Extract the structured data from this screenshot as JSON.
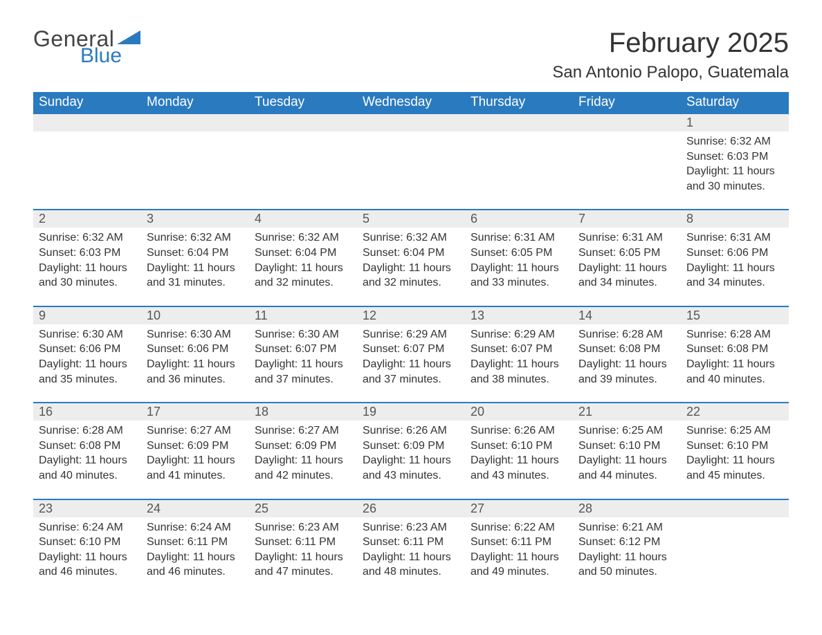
{
  "brand": {
    "word1": "General",
    "word2": "Blue",
    "color": "#2a7ac0"
  },
  "title": "February 2025",
  "location": "San Antonio Palopo, Guatemala",
  "colors": {
    "header_bg": "#2a7ac0",
    "header_text": "#ffffff",
    "row_gray": "#ededed",
    "divider": "#2a7ac0",
    "text": "#333333"
  },
  "day_headers": [
    "Sunday",
    "Monday",
    "Tuesday",
    "Wednesday",
    "Thursday",
    "Friday",
    "Saturday"
  ],
  "weeks": [
    {
      "days": [
        null,
        null,
        null,
        null,
        null,
        null,
        {
          "n": "1",
          "sunrise": "6:32 AM",
          "sunset": "6:03 PM",
          "daylight": "11 hours and 30 minutes."
        }
      ]
    },
    {
      "days": [
        {
          "n": "2",
          "sunrise": "6:32 AM",
          "sunset": "6:03 PM",
          "daylight": "11 hours and 30 minutes."
        },
        {
          "n": "3",
          "sunrise": "6:32 AM",
          "sunset": "6:04 PM",
          "daylight": "11 hours and 31 minutes."
        },
        {
          "n": "4",
          "sunrise": "6:32 AM",
          "sunset": "6:04 PM",
          "daylight": "11 hours and 32 minutes."
        },
        {
          "n": "5",
          "sunrise": "6:32 AM",
          "sunset": "6:04 PM",
          "daylight": "11 hours and 32 minutes."
        },
        {
          "n": "6",
          "sunrise": "6:31 AM",
          "sunset": "6:05 PM",
          "daylight": "11 hours and 33 minutes."
        },
        {
          "n": "7",
          "sunrise": "6:31 AM",
          "sunset": "6:05 PM",
          "daylight": "11 hours and 34 minutes."
        },
        {
          "n": "8",
          "sunrise": "6:31 AM",
          "sunset": "6:06 PM",
          "daylight": "11 hours and 34 minutes."
        }
      ]
    },
    {
      "days": [
        {
          "n": "9",
          "sunrise": "6:30 AM",
          "sunset": "6:06 PM",
          "daylight": "11 hours and 35 minutes."
        },
        {
          "n": "10",
          "sunrise": "6:30 AM",
          "sunset": "6:06 PM",
          "daylight": "11 hours and 36 minutes."
        },
        {
          "n": "11",
          "sunrise": "6:30 AM",
          "sunset": "6:07 PM",
          "daylight": "11 hours and 37 minutes."
        },
        {
          "n": "12",
          "sunrise": "6:29 AM",
          "sunset": "6:07 PM",
          "daylight": "11 hours and 37 minutes."
        },
        {
          "n": "13",
          "sunrise": "6:29 AM",
          "sunset": "6:07 PM",
          "daylight": "11 hours and 38 minutes."
        },
        {
          "n": "14",
          "sunrise": "6:28 AM",
          "sunset": "6:08 PM",
          "daylight": "11 hours and 39 minutes."
        },
        {
          "n": "15",
          "sunrise": "6:28 AM",
          "sunset": "6:08 PM",
          "daylight": "11 hours and 40 minutes."
        }
      ]
    },
    {
      "days": [
        {
          "n": "16",
          "sunrise": "6:28 AM",
          "sunset": "6:08 PM",
          "daylight": "11 hours and 40 minutes."
        },
        {
          "n": "17",
          "sunrise": "6:27 AM",
          "sunset": "6:09 PM",
          "daylight": "11 hours and 41 minutes."
        },
        {
          "n": "18",
          "sunrise": "6:27 AM",
          "sunset": "6:09 PM",
          "daylight": "11 hours and 42 minutes."
        },
        {
          "n": "19",
          "sunrise": "6:26 AM",
          "sunset": "6:09 PM",
          "daylight": "11 hours and 43 minutes."
        },
        {
          "n": "20",
          "sunrise": "6:26 AM",
          "sunset": "6:10 PM",
          "daylight": "11 hours and 43 minutes."
        },
        {
          "n": "21",
          "sunrise": "6:25 AM",
          "sunset": "6:10 PM",
          "daylight": "11 hours and 44 minutes."
        },
        {
          "n": "22",
          "sunrise": "6:25 AM",
          "sunset": "6:10 PM",
          "daylight": "11 hours and 45 minutes."
        }
      ]
    },
    {
      "days": [
        {
          "n": "23",
          "sunrise": "6:24 AM",
          "sunset": "6:10 PM",
          "daylight": "11 hours and 46 minutes."
        },
        {
          "n": "24",
          "sunrise": "6:24 AM",
          "sunset": "6:11 PM",
          "daylight": "11 hours and 46 minutes."
        },
        {
          "n": "25",
          "sunrise": "6:23 AM",
          "sunset": "6:11 PM",
          "daylight": "11 hours and 47 minutes."
        },
        {
          "n": "26",
          "sunrise": "6:23 AM",
          "sunset": "6:11 PM",
          "daylight": "11 hours and 48 minutes."
        },
        {
          "n": "27",
          "sunrise": "6:22 AM",
          "sunset": "6:11 PM",
          "daylight": "11 hours and 49 minutes."
        },
        {
          "n": "28",
          "sunrise": "6:21 AM",
          "sunset": "6:12 PM",
          "daylight": "11 hours and 50 minutes."
        },
        null
      ]
    }
  ],
  "labels": {
    "sunrise": "Sunrise: ",
    "sunset": "Sunset: ",
    "daylight": "Daylight: "
  }
}
